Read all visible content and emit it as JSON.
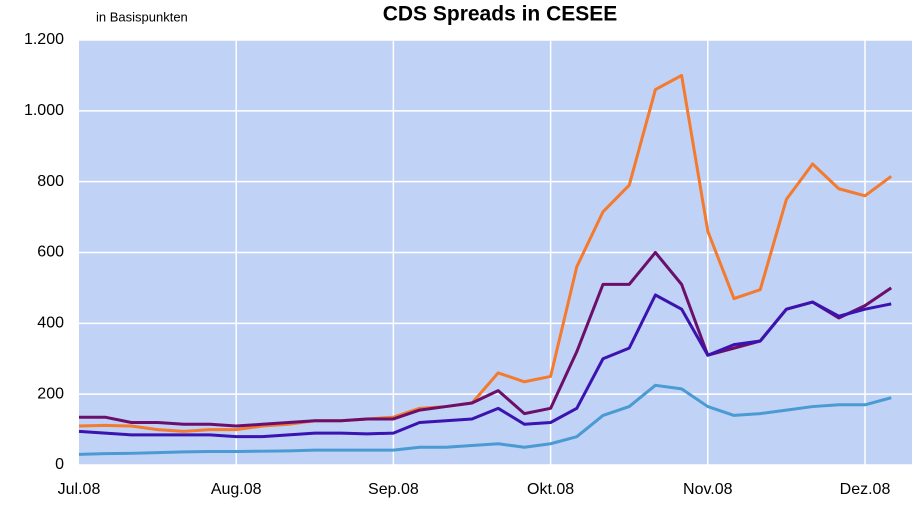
{
  "chart_data": {
    "type": "line",
    "title": "CDS Spreads in CESEE",
    "subtitle": "in Basispunkten",
    "categories": [
      "Jul.08",
      null,
      null,
      null,
      null,
      null,
      "Aug.08",
      null,
      null,
      null,
      null,
      null,
      "Sep.08",
      null,
      null,
      null,
      null,
      null,
      "Okt.08",
      null,
      null,
      null,
      null,
      null,
      "Nov.08",
      null,
      null,
      null,
      null,
      null,
      "Dez.08",
      null
    ],
    "series": [
      {
        "color": "#f47a2e",
        "values": [
          110,
          112,
          110,
          100,
          95,
          100,
          100,
          110,
          115,
          125,
          125,
          130,
          135,
          160,
          165,
          175,
          260,
          235,
          250,
          560,
          715,
          790,
          1060,
          1100,
          660,
          470,
          495,
          750,
          850,
          780,
          760,
          815
        ]
      },
      {
        "color": "#6b0f6b",
        "values": [
          135,
          135,
          120,
          120,
          115,
          115,
          110,
          115,
          120,
          125,
          125,
          130,
          130,
          155,
          165,
          175,
          210,
          145,
          160,
          320,
          510,
          510,
          600,
          510,
          310,
          330,
          350,
          440,
          460,
          415,
          450,
          500
        ]
      },
      {
        "color": "#3b13b0",
        "values": [
          95,
          90,
          85,
          85,
          85,
          85,
          80,
          80,
          85,
          90,
          90,
          88,
          90,
          120,
          125,
          130,
          160,
          115,
          120,
          160,
          300,
          330,
          480,
          440,
          310,
          340,
          350,
          440,
          460,
          420,
          440,
          455
        ]
      },
      {
        "color": "#4a9ad4",
        "values": [
          30,
          32,
          33,
          35,
          37,
          38,
          38,
          39,
          40,
          42,
          42,
          42,
          42,
          50,
          50,
          55,
          60,
          50,
          60,
          80,
          140,
          165,
          225,
          215,
          165,
          140,
          145,
          155,
          165,
          170,
          170,
          190
        ]
      }
    ],
    "ylim": [
      0,
      1200
    ],
    "yticks": [
      0,
      200,
      400,
      600,
      800,
      {
        "value": 1000,
        "label": "1.000"
      },
      {
        "value": 1200,
        "label": "1.200"
      }
    ],
    "grid": true
  }
}
